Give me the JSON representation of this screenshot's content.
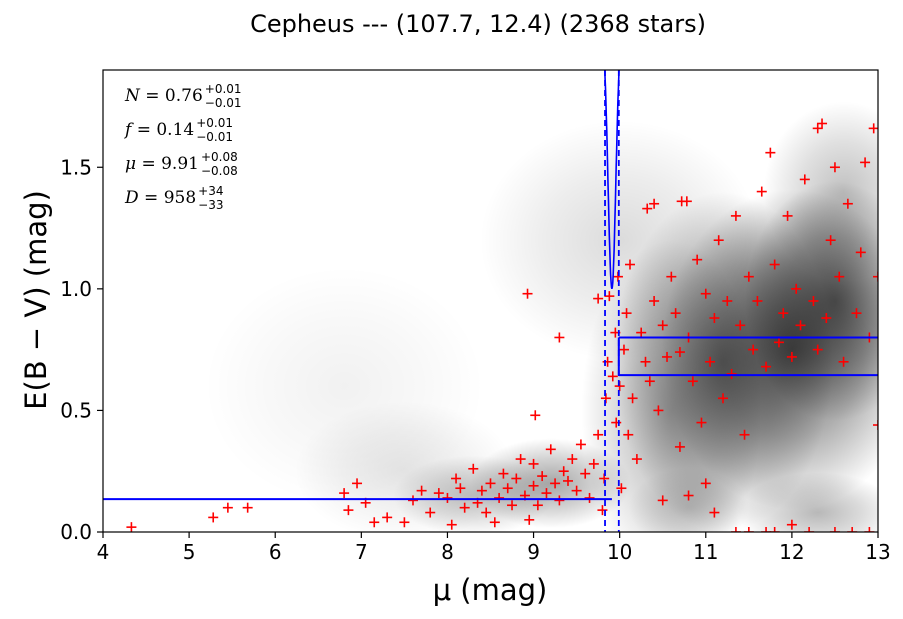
{
  "chart_data": {
    "type": "scatter",
    "title": "Cepheus --- (107.7, 12.4) (2368 stars)",
    "xlabel": "μ (mag)",
    "ylabel": "E(B − V) (mag)",
    "xlim": [
      4,
      13
    ],
    "ylim": [
      0,
      1.9
    ],
    "xticks": [
      "4",
      "5",
      "6",
      "7",
      "8",
      "9",
      "10",
      "11",
      "12",
      "13"
    ],
    "yticks": [
      "0.0",
      "0.5",
      "1.0",
      "1.5"
    ],
    "annotations": [
      {
        "name": "N",
        "value": "0.76",
        "upper": "+0.01",
        "lower": "−0.01"
      },
      {
        "name": "f",
        "value": "0.14",
        "upper": "+0.01",
        "lower": "−0.01"
      },
      {
        "name": "μ",
        "value": "9.91",
        "upper": "+0.08",
        "lower": "−0.08"
      },
      {
        "name": "D",
        "value": "958",
        "upper": "+34",
        "lower": "−33"
      }
    ],
    "model": {
      "foreground_reddening": 0.135,
      "mu_step": 9.91,
      "mu_lo": 9.83,
      "mu_hi": 9.99,
      "background_reddening_lower": 0.645,
      "background_reddening_upper": 0.8
    },
    "colors": {
      "stars": "#ff0000",
      "model": "#0000ff",
      "density": "#000000"
    },
    "series": [
      {
        "name": "",
        "marker": "+",
        "points": [
          [
            4.33,
            0.02
          ],
          [
            5.28,
            0.06
          ],
          [
            5.45,
            0.1
          ],
          [
            5.68,
            0.1
          ],
          [
            6.8,
            0.16
          ],
          [
            6.85,
            0.09
          ],
          [
            6.95,
            0.2
          ],
          [
            7.05,
            0.12
          ],
          [
            7.15,
            0.04
          ],
          [
            7.3,
            0.06
          ],
          [
            7.5,
            0.04
          ],
          [
            7.6,
            0.13
          ],
          [
            7.7,
            0.17
          ],
          [
            7.8,
            0.08
          ],
          [
            7.9,
            0.16
          ],
          [
            8.0,
            0.14
          ],
          [
            8.05,
            0.03
          ],
          [
            8.1,
            0.22
          ],
          [
            8.15,
            0.18
          ],
          [
            8.2,
            0.1
          ],
          [
            8.3,
            0.26
          ],
          [
            8.35,
            0.12
          ],
          [
            8.4,
            0.17
          ],
          [
            8.45,
            0.08
          ],
          [
            8.5,
            0.2
          ],
          [
            8.55,
            0.04
          ],
          [
            8.6,
            0.14
          ],
          [
            8.65,
            0.24
          ],
          [
            8.7,
            0.18
          ],
          [
            8.75,
            0.11
          ],
          [
            8.8,
            0.22
          ],
          [
            8.85,
            0.3
          ],
          [
            8.9,
            0.15
          ],
          [
            8.95,
            0.05
          ],
          [
            9.0,
            0.19
          ],
          [
            9.0,
            0.28
          ],
          [
            9.02,
            0.48
          ],
          [
            9.05,
            0.11
          ],
          [
            9.1,
            0.23
          ],
          [
            9.15,
            0.16
          ],
          [
            9.2,
            0.34
          ],
          [
            9.25,
            0.2
          ],
          [
            9.3,
            0.13
          ],
          [
            9.3,
            0.8
          ],
          [
            9.35,
            0.25
          ],
          [
            9.4,
            0.21
          ],
          [
            9.45,
            0.3
          ],
          [
            9.5,
            0.17
          ],
          [
            9.55,
            0.36
          ],
          [
            9.6,
            0.24
          ],
          [
            9.65,
            0.14
          ],
          [
            9.7,
            0.28
          ],
          [
            9.75,
            0.4
          ],
          [
            9.75,
            0.96
          ],
          [
            9.8,
            0.09
          ],
          [
            9.82,
            0.22
          ],
          [
            9.84,
            0.55
          ],
          [
            9.86,
            0.7
          ],
          [
            9.88,
            0.97
          ],
          [
            8.93,
            0.98
          ],
          [
            9.92,
            0.64
          ],
          [
            9.95,
            0.82
          ],
          [
            9.96,
            0.45
          ],
          [
            9.98,
            1.05
          ],
          [
            10.0,
            0.6
          ],
          [
            10.02,
            0.18
          ],
          [
            10.05,
            0.75
          ],
          [
            10.08,
            0.9
          ],
          [
            10.1,
            0.4
          ],
          [
            10.12,
            1.1
          ],
          [
            10.15,
            0.55
          ],
          [
            10.2,
            0.3
          ],
          [
            10.25,
            0.82
          ],
          [
            10.3,
            0.7
          ],
          [
            10.32,
            1.33
          ],
          [
            10.35,
            0.62
          ],
          [
            10.4,
            0.95
          ],
          [
            10.4,
            1.35
          ],
          [
            10.45,
            0.5
          ],
          [
            10.5,
            0.85
          ],
          [
            10.5,
            0.13
          ],
          [
            10.55,
            0.72
          ],
          [
            10.6,
            1.05
          ],
          [
            10.65,
            0.9
          ],
          [
            10.7,
            0.35
          ],
          [
            10.7,
            0.74
          ],
          [
            10.72,
            1.36
          ],
          [
            10.78,
            1.36
          ],
          [
            10.8,
            0.8
          ],
          [
            10.8,
            0.15
          ],
          [
            10.85,
            0.62
          ],
          [
            10.9,
            1.12
          ],
          [
            10.95,
            0.45
          ],
          [
            11.0,
            0.98
          ],
          [
            11.0,
            0.2
          ],
          [
            11.05,
            0.7
          ],
          [
            11.1,
            0.88
          ],
          [
            11.1,
            0.08
          ],
          [
            11.15,
            1.2
          ],
          [
            11.2,
            0.55
          ],
          [
            11.25,
            0.95
          ],
          [
            11.3,
            0.65
          ],
          [
            11.35,
            1.3
          ],
          [
            11.35,
            0.0
          ],
          [
            11.4,
            0.85
          ],
          [
            11.45,
            0.4
          ],
          [
            11.5,
            1.05
          ],
          [
            11.5,
            0.0
          ],
          [
            11.55,
            0.75
          ],
          [
            11.6,
            0.95
          ],
          [
            11.65,
            1.4
          ],
          [
            11.7,
            0.68
          ],
          [
            11.7,
            0.0
          ],
          [
            11.75,
            1.56
          ],
          [
            11.8,
            1.1
          ],
          [
            11.8,
            0.0
          ],
          [
            11.85,
            0.78
          ],
          [
            11.9,
            0.9
          ],
          [
            11.95,
            1.3
          ],
          [
            12.0,
            0.72
          ],
          [
            12.0,
            0.03
          ],
          [
            12.05,
            1.0
          ],
          [
            12.1,
            0.85
          ],
          [
            12.15,
            1.45
          ],
          [
            12.2,
            0.0
          ],
          [
            12.25,
            0.95
          ],
          [
            12.3,
            1.66
          ],
          [
            12.3,
            0.75
          ],
          [
            12.35,
            1.68
          ],
          [
            12.4,
            0.88
          ],
          [
            12.45,
            1.2
          ],
          [
            12.5,
            0.0
          ],
          [
            12.5,
            1.5
          ],
          [
            12.55,
            1.05
          ],
          [
            12.6,
            0.7
          ],
          [
            12.65,
            1.35
          ],
          [
            12.7,
            0.0
          ],
          [
            12.75,
            0.9
          ],
          [
            12.8,
            1.15
          ],
          [
            12.85,
            1.52
          ],
          [
            12.9,
            0.0
          ],
          [
            12.9,
            0.8
          ],
          [
            12.95,
            1.66
          ],
          [
            13.0,
            0.44
          ],
          [
            13.0,
            1.05
          ]
        ]
      }
    ]
  }
}
